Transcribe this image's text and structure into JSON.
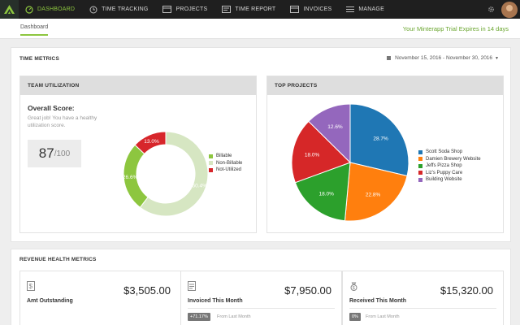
{
  "nav": {
    "items": [
      {
        "label": "DASHBOARD",
        "icon": "dashboard-gauge-icon"
      },
      {
        "label": "TIME TRACKING",
        "icon": "clock-icon"
      },
      {
        "label": "PROJECTS",
        "icon": "folder-icon"
      },
      {
        "label": "TIME REPORT",
        "icon": "report-icon"
      },
      {
        "label": "INVOICES",
        "icon": "invoice-icon"
      },
      {
        "label": "MANAGE",
        "icon": "list-icon"
      }
    ],
    "active_color": "#8dc63f"
  },
  "subheader": {
    "tab": "Dashboard",
    "trial_notice": "Your Minterapp Trial Expires in 14 days"
  },
  "time_metrics": {
    "title": "TIME METRICS",
    "date_range": "November 15, 2016 - November 30, 2016"
  },
  "team_utilization": {
    "title": "TEAM UTILIZATION",
    "overall_label": "Overall Score:",
    "message": "Great job! You have a healthy utilization score.",
    "score": "87",
    "score_max": "/100"
  },
  "top_projects": {
    "title": "TOP PROJECTS"
  },
  "chart_data": [
    {
      "type": "pie",
      "variant": "donut",
      "categories": [
        "Billable",
        "Non-Billable",
        "Not-Utilized"
      ],
      "values": [
        26.6,
        60.4,
        13.0
      ],
      "labels": [
        "26.6%",
        "60.4%",
        "13.0%"
      ],
      "colors": [
        "#8dc63f",
        "#d6e6c2",
        "#d7262b"
      ],
      "legend": "right"
    },
    {
      "type": "pie",
      "categories": [
        "Scott Soda Shop",
        "Damien Brewery Website",
        "Jeffs Pizza Shop",
        "Liz's Puppy Care",
        "Building Website"
      ],
      "values": [
        28.7,
        22.8,
        18.0,
        18.0,
        12.6
      ],
      "labels": [
        "28.7%",
        "22.8%",
        "18.0%",
        "18.0%",
        "12.6%"
      ],
      "colors": [
        "#1f77b4",
        "#ff7f0e",
        "#2ca02c",
        "#d62728",
        "#9467bd"
      ],
      "legend": "right"
    }
  ],
  "revenue": {
    "title": "REVENUE HEALTH METRICS",
    "cards": [
      {
        "label": "Amt Outstanding",
        "amount": "$3,505.00",
        "icon": "document-dollar-icon",
        "badge": "",
        "from": ""
      },
      {
        "label": "Invoiced This Month",
        "amount": "$7,950.00",
        "icon": "invoice-doc-icon",
        "badge": "+71.17%",
        "from": "From Last Month"
      },
      {
        "label": "Received This Month",
        "amount": "$15,320.00",
        "icon": "money-bag-icon",
        "badge": "0%",
        "from": "From Last Month"
      }
    ]
  }
}
